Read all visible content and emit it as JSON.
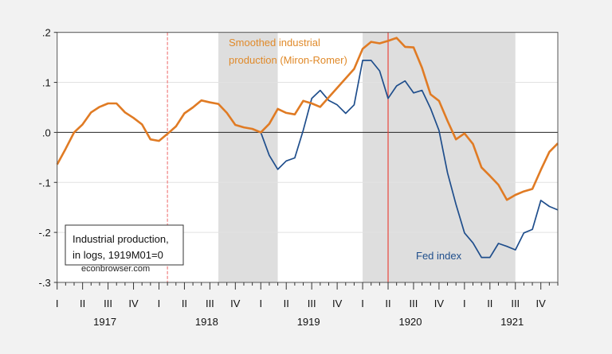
{
  "chart_data": {
    "type": "line",
    "title": "",
    "xlabel": "",
    "ylabel": "",
    "ylim": [
      -0.3,
      0.2
    ],
    "yticks": [
      0.2,
      0.1,
      0.0,
      -0.1,
      -0.2,
      -0.3
    ],
    "ytick_labels": [
      ".2",
      ".1",
      ".0",
      "-.1",
      "-.2",
      "-.3"
    ],
    "grid": true,
    "x_start": "1917M01",
    "x_end": "1921M12",
    "x": [
      "1917M01",
      "1917M02",
      "1917M03",
      "1917M04",
      "1917M05",
      "1917M06",
      "1917M07",
      "1917M08",
      "1917M09",
      "1917M10",
      "1917M11",
      "1917M12",
      "1918M01",
      "1918M02",
      "1918M03",
      "1918M04",
      "1918M05",
      "1918M06",
      "1918M07",
      "1918M08",
      "1918M09",
      "1918M10",
      "1918M11",
      "1918M12",
      "1919M01",
      "1919M02",
      "1919M03",
      "1919M04",
      "1919M05",
      "1919M06",
      "1919M07",
      "1919M08",
      "1919M09",
      "1919M10",
      "1919M11",
      "1919M12",
      "1920M01",
      "1920M02",
      "1920M03",
      "1920M04",
      "1920M05",
      "1920M06",
      "1920M07",
      "1920M08",
      "1920M09",
      "1920M10",
      "1920M11",
      "1920M12",
      "1921M01",
      "1921M02",
      "1921M03",
      "1921M04",
      "1921M05",
      "1921M06",
      "1921M07",
      "1921M08",
      "1921M09",
      "1921M10",
      "1921M11",
      "1921M12"
    ],
    "quarter_labels": [
      "I",
      "II",
      "III",
      "IV"
    ],
    "years": [
      "1917",
      "1918",
      "1919",
      "1920",
      "1921"
    ],
    "series": [
      {
        "name": "Smoothed industrial production (Miron-Romer)",
        "color": "#e07b24",
        "values": [
          -0.064,
          -0.033,
          0.0,
          0.016,
          0.04,
          0.051,
          0.058,
          0.058,
          0.04,
          0.029,
          0.016,
          -0.014,
          -0.017,
          -0.003,
          0.012,
          0.038,
          0.05,
          0.064,
          0.06,
          0.057,
          0.039,
          0.015,
          0.01,
          0.007,
          0.0,
          0.017,
          0.047,
          0.039,
          0.036,
          0.063,
          0.058,
          0.051,
          0.07,
          0.089,
          0.108,
          0.127,
          0.167,
          0.181,
          0.178,
          0.183,
          0.189,
          0.171,
          0.17,
          0.129,
          0.076,
          0.063,
          0.023,
          -0.014,
          -0.002,
          -0.023,
          -0.07,
          -0.087,
          -0.105,
          -0.135,
          -0.125,
          -0.118,
          -0.113,
          -0.075,
          -0.039,
          -0.022
        ]
      },
      {
        "name": "Fed index",
        "color": "#1f4e8c",
        "values": [
          null,
          null,
          null,
          null,
          null,
          null,
          null,
          null,
          null,
          null,
          null,
          null,
          null,
          null,
          null,
          null,
          null,
          null,
          null,
          null,
          null,
          null,
          null,
          null,
          0.0,
          -0.046,
          -0.074,
          -0.057,
          -0.051,
          0.004,
          0.068,
          0.084,
          0.064,
          0.055,
          0.038,
          0.055,
          0.144,
          0.144,
          0.123,
          0.068,
          0.093,
          0.103,
          0.079,
          0.084,
          0.048,
          0.004,
          -0.081,
          -0.144,
          -0.201,
          -0.221,
          -0.25,
          -0.25,
          -0.222,
          -0.228,
          -0.235,
          -0.201,
          -0.194,
          -0.136,
          -0.148,
          -0.155
        ]
      }
    ],
    "shaded_periods": [
      [
        "1918M08",
        "1919M03"
      ],
      [
        "1920M01",
        "1921M07"
      ]
    ],
    "vertical_lines": [
      {
        "at": "1918M02",
        "style": "dashed",
        "color": "#f08080"
      },
      {
        "at": "1920M04",
        "style": "solid",
        "color": "#e8463c"
      }
    ],
    "annotations": {
      "orange_label": [
        "Smoothed industrial",
        "production (Miron-Romer)"
      ],
      "blue_label": "Fed index",
      "legend_box": [
        "Industrial production,",
        "in logs, 1919M01=0"
      ],
      "watermark": "econbrowser.com"
    }
  }
}
